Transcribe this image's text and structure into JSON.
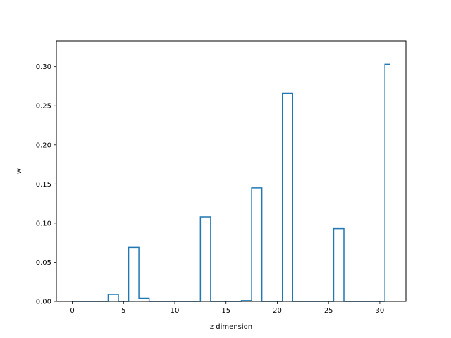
{
  "chart_data": {
    "type": "line",
    "drawstyle": "steps-mid",
    "title": "",
    "xlabel": "z dimension",
    "ylabel": "w",
    "xlim": [
      -1.55,
      32.55
    ],
    "ylim": [
      0,
      0.333
    ],
    "xticks": [
      0,
      5,
      10,
      15,
      20,
      25,
      30
    ],
    "yticks": [
      0.0,
      0.05,
      0.1,
      0.15,
      0.2,
      0.25,
      0.3
    ],
    "ytick_labels": [
      "0.00",
      "0.05",
      "0.10",
      "0.15",
      "0.20",
      "0.25",
      "0.30"
    ],
    "xtick_labels": [
      "0",
      "5",
      "10",
      "15",
      "20",
      "25",
      "30"
    ],
    "grid": false,
    "color": "#1f77b4",
    "x": [
      0,
      1,
      2,
      3,
      4,
      5,
      6,
      7,
      8,
      9,
      10,
      11,
      12,
      13,
      14,
      15,
      16,
      17,
      18,
      19,
      20,
      21,
      22,
      23,
      24,
      25,
      26,
      27,
      28,
      29,
      30,
      31
    ],
    "values": [
      0,
      0,
      0,
      0,
      0.009,
      0,
      0.069,
      0.004,
      0,
      0,
      0,
      0,
      0,
      0.108,
      0,
      0,
      0,
      0.001,
      0.145,
      0,
      0,
      0.266,
      0,
      0,
      0,
      0,
      0.093,
      0,
      0,
      0,
      0,
      0.303
    ]
  }
}
